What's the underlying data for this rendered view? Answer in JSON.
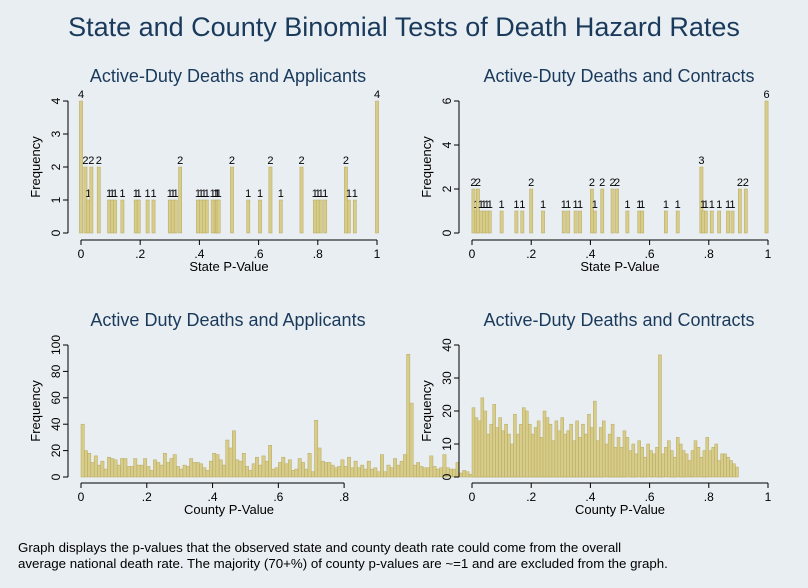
{
  "figure": {
    "title": "State and County Binomial Tests of Death Hazard Rates",
    "caption_line1": "Graph displays the p-values that the observed state and county death rate could come from the overall",
    "caption_line2": "average national death rate. The majority (70+%) of county p-values are ~=1 and are excluded from the graph.",
    "bar_color": "#d8cc8a",
    "title_color": "#1a3a5c"
  },
  "chart_data": [
    {
      "type": "bar",
      "title": "Active-Duty Deaths and Applicants",
      "xlabel": "State P-Value",
      "ylabel": "Frequency",
      "xlim": [
        0,
        1
      ],
      "ylim": [
        0,
        4
      ],
      "xticks": [
        "0",
        ".2",
        ".4",
        ".6",
        ".8",
        "1"
      ],
      "yticks": [
        "0",
        "1",
        "2",
        "3",
        "4"
      ],
      "bar_labels": true,
      "x": [
        0.0,
        0.015,
        0.025,
        0.035,
        0.06,
        0.095,
        0.105,
        0.115,
        0.14,
        0.185,
        0.195,
        0.225,
        0.245,
        0.3,
        0.31,
        0.32,
        0.335,
        0.395,
        0.405,
        0.415,
        0.425,
        0.445,
        0.455,
        0.46,
        0.465,
        0.51,
        0.565,
        0.605,
        0.64,
        0.675,
        0.745,
        0.79,
        0.8,
        0.81,
        0.825,
        0.895,
        0.905,
        0.925,
        1.0
      ],
      "values": [
        4,
        2,
        1,
        2,
        2,
        1,
        1,
        1,
        1,
        1,
        1,
        1,
        1,
        1,
        1,
        1,
        2,
        1,
        1,
        1,
        1,
        1,
        1,
        1,
        1,
        2,
        1,
        1,
        2,
        1,
        2,
        1,
        1,
        1,
        1,
        2,
        1,
        1,
        4
      ]
    },
    {
      "type": "bar",
      "title": "Active-Duty Deaths and Contracts",
      "xlabel": "State P-Value",
      "ylabel": "Frequency",
      "xlim": [
        0,
        1
      ],
      "ylim": [
        0,
        6
      ],
      "xticks": [
        "0",
        ".2",
        ".4",
        ".6",
        ".8",
        "1"
      ],
      "yticks": [
        "0",
        "2",
        "4",
        "6"
      ],
      "bar_labels": true,
      "x": [
        0.005,
        0.015,
        0.02,
        0.03,
        0.04,
        0.05,
        0.06,
        0.1,
        0.15,
        0.17,
        0.2,
        0.24,
        0.31,
        0.325,
        0.35,
        0.365,
        0.405,
        0.415,
        0.44,
        0.475,
        0.49,
        0.525,
        0.565,
        0.575,
        0.655,
        0.695,
        0.775,
        0.78,
        0.79,
        0.81,
        0.835,
        0.865,
        0.88,
        0.905,
        0.925,
        0.995
      ],
      "values": [
        2,
        1,
        2,
        1,
        1,
        1,
        1,
        1,
        1,
        1,
        2,
        1,
        1,
        1,
        1,
        1,
        2,
        1,
        2,
        2,
        2,
        1,
        1,
        1,
        1,
        1,
        3,
        1,
        1,
        1,
        1,
        1,
        1,
        2,
        2,
        6
      ]
    },
    {
      "type": "bar",
      "title": "Active Duty Deaths and Applicants",
      "xlabel": "County P-Value",
      "ylabel": "Frequency",
      "xlim": [
        0,
        0.9
      ],
      "ylim": [
        0,
        100
      ],
      "xticks": [
        "0",
        ".2",
        ".4",
        ".6",
        ".8"
      ],
      "yticks": [
        "0",
        "20",
        "40",
        "60",
        "80",
        "100"
      ],
      "bar_labels": false,
      "bin_width": 0.01,
      "values": [
        40,
        20,
        18,
        11,
        16,
        9,
        12,
        6,
        15,
        14,
        13,
        9,
        14,
        14,
        8,
        8,
        14,
        9,
        9,
        14,
        8,
        5,
        13,
        11,
        9,
        18,
        11,
        14,
        17,
        8,
        6,
        9,
        8,
        14,
        11,
        11,
        10,
        7,
        5,
        12,
        18,
        17,
        13,
        9,
        28,
        22,
        35,
        13,
        12,
        18,
        8,
        5,
        10,
        15,
        9,
        16,
        12,
        24,
        6,
        7,
        11,
        15,
        10,
        13,
        5,
        6,
        14,
        11,
        6,
        18,
        4,
        43,
        22,
        12,
        11,
        11,
        9,
        7,
        8,
        13,
        8,
        15,
        7,
        12,
        7,
        9,
        6,
        12,
        6,
        7,
        4,
        17,
        4,
        9,
        7,
        14,
        9,
        12,
        17,
        93,
        56,
        9,
        11,
        8,
        7,
        7,
        16,
        8,
        6,
        7,
        17,
        7,
        6,
        6,
        11,
        3,
        5,
        4,
        2,
        5,
        10,
        3,
        2,
        3,
        7,
        2,
        3,
        5,
        6,
        3,
        4,
        2,
        4,
        3,
        3,
        6,
        3,
        2,
        1,
        2,
        1,
        2,
        3,
        1,
        2,
        1,
        2,
        2,
        1,
        2,
        4,
        2,
        1,
        2,
        1,
        3,
        2,
        1,
        1,
        0,
        3,
        1,
        2,
        1,
        2,
        1,
        0,
        1,
        1,
        0,
        1,
        1,
        0,
        1,
        0,
        1,
        1,
        0,
        0,
        1,
        1,
        0,
        1,
        2,
        0,
        1,
        0,
        0,
        0,
        1
      ]
    },
    {
      "type": "bar",
      "title": "Active-Duty Deaths and Contracts",
      "xlabel": "County P-Value",
      "ylabel": "Frequency",
      "xlim": [
        0,
        1
      ],
      "ylim": [
        0,
        40
      ],
      "xticks": [
        "0",
        ".2",
        ".4",
        ".6",
        ".8",
        "1"
      ],
      "yticks": [
        "0",
        "10",
        "20",
        "30",
        "40"
      ],
      "bar_labels": false,
      "bin_width": 0.01,
      "values": [
        21,
        18,
        17,
        24,
        20,
        13,
        16,
        22,
        15,
        18,
        14,
        16,
        13,
        10,
        19,
        13,
        16,
        21,
        20,
        16,
        13,
        15,
        17,
        12,
        20,
        18,
        16,
        11,
        17,
        14,
        18,
        13,
        14,
        16,
        11,
        17,
        12,
        16,
        13,
        19,
        15,
        23,
        11,
        15,
        17,
        10,
        13,
        16,
        9,
        12,
        9,
        14,
        12,
        8,
        10,
        7,
        11,
        9,
        6,
        10,
        8,
        7,
        9,
        37,
        7,
        9,
        11,
        8,
        6,
        12,
        10,
        8,
        7,
        5,
        8,
        11,
        9,
        6,
        8,
        12,
        8,
        9,
        10,
        5,
        7,
        7,
        6,
        5,
        4,
        3
      ]
    }
  ]
}
